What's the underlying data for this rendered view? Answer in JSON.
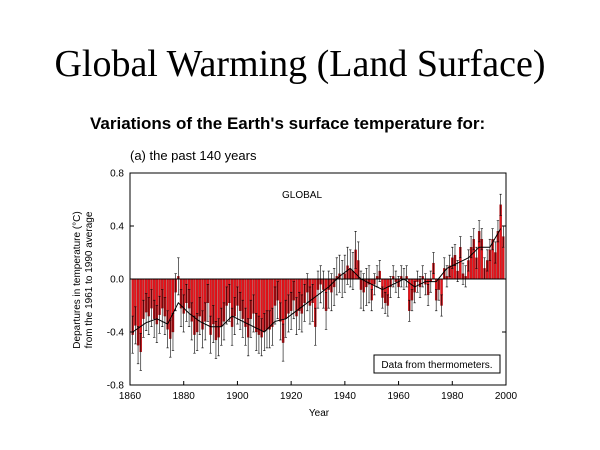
{
  "slide": {
    "title": "Global Warming (Land Surface)"
  },
  "chart_data": {
    "type": "bar",
    "title": "Variations of the Earth's surface temperature for:",
    "subtitle": "(a) the past 140 years",
    "xlabel": "Year",
    "ylabel_lines": [
      "Departures in temperature (°C)",
      "from the 1961 to 1990 average"
    ],
    "xlim": [
      1860,
      2000
    ],
    "ylim": [
      -0.8,
      0.8
    ],
    "x_ticks": [
      "1860",
      "1880",
      "1900",
      "1920",
      "1940",
      "1960",
      "1980",
      "2000"
    ],
    "y_ticks": [
      "0.8",
      "0.4",
      "0.0",
      "-0.4",
      "-0.8"
    ],
    "region_label": "GLOBAL",
    "annotation": "Data from thermometers.",
    "bar_color": "#e8121a",
    "grid": false,
    "x": [
      1861,
      1862,
      1863,
      1864,
      1865,
      1866,
      1867,
      1868,
      1869,
      1870,
      1871,
      1872,
      1873,
      1874,
      1875,
      1876,
      1877,
      1878,
      1879,
      1880,
      1881,
      1882,
      1883,
      1884,
      1885,
      1886,
      1887,
      1888,
      1889,
      1890,
      1891,
      1892,
      1893,
      1894,
      1895,
      1896,
      1897,
      1898,
      1899,
      1900,
      1901,
      1902,
      1903,
      1904,
      1905,
      1906,
      1907,
      1908,
      1909,
      1910,
      1911,
      1912,
      1913,
      1914,
      1915,
      1916,
      1917,
      1918,
      1919,
      1920,
      1921,
      1922,
      1923,
      1924,
      1925,
      1926,
      1927,
      1928,
      1929,
      1930,
      1931,
      1932,
      1933,
      1934,
      1935,
      1936,
      1937,
      1938,
      1939,
      1940,
      1941,
      1942,
      1943,
      1944,
      1945,
      1946,
      1947,
      1948,
      1949,
      1950,
      1951,
      1952,
      1953,
      1954,
      1955,
      1956,
      1957,
      1958,
      1959,
      1960,
      1961,
      1962,
      1963,
      1964,
      1965,
      1966,
      1967,
      1968,
      1969,
      1970,
      1971,
      1972,
      1973,
      1974,
      1975,
      1976,
      1977,
      1978,
      1979,
      1980,
      1981,
      1982,
      1983,
      1984,
      1985,
      1986,
      1987,
      1988,
      1989,
      1990,
      1991,
      1992,
      1993,
      1994,
      1995,
      1996,
      1997,
      1998,
      1999
    ],
    "values": [
      -0.42,
      -0.35,
      -0.5,
      -0.55,
      -0.3,
      -0.25,
      -0.28,
      -0.22,
      -0.3,
      -0.34,
      -0.27,
      -0.22,
      -0.28,
      -0.38,
      -0.45,
      -0.4,
      -0.1,
      0.02,
      -0.22,
      -0.26,
      -0.18,
      -0.22,
      -0.32,
      -0.42,
      -0.4,
      -0.28,
      -0.38,
      -0.32,
      -0.18,
      -0.42,
      -0.34,
      -0.46,
      -0.44,
      -0.36,
      -0.32,
      -0.2,
      -0.18,
      -0.36,
      -0.28,
      -0.2,
      -0.24,
      -0.3,
      -0.36,
      -0.44,
      -0.3,
      -0.26,
      -0.4,
      -0.42,
      -0.44,
      -0.4,
      -0.38,
      -0.38,
      -0.36,
      -0.2,
      -0.16,
      -0.32,
      -0.48,
      -0.3,
      -0.26,
      -0.24,
      -0.16,
      -0.28,
      -0.24,
      -0.26,
      -0.18,
      -0.1,
      -0.2,
      -0.18,
      -0.36,
      -0.08,
      -0.04,
      -0.08,
      -0.24,
      -0.08,
      -0.1,
      -0.06,
      0.02,
      0.04,
      0.0,
      0.04,
      0.1,
      0.08,
      0.06,
      0.22,
      0.14,
      -0.08,
      -0.1,
      -0.06,
      -0.04,
      -0.16,
      -0.04,
      0.02,
      0.06,
      -0.14,
      -0.18,
      -0.2,
      -0.06,
      0.02,
      -0.02,
      -0.06,
      0.02,
      0.0,
      0.02,
      -0.24,
      -0.16,
      -0.1,
      -0.02,
      -0.06,
      0.02,
      -0.04,
      -0.12,
      -0.02,
      0.12,
      -0.16,
      -0.08,
      -0.2,
      0.08,
      0.02,
      0.1,
      0.16,
      0.18,
      0.06,
      0.24,
      0.04,
      0.02,
      0.14,
      0.24,
      0.3,
      0.16,
      0.36,
      0.3,
      0.08,
      0.14,
      0.22,
      0.3,
      0.2,
      0.36,
      0.56,
      0.32
    ],
    "smoothed": [
      [
        1861,
        -0.4
      ],
      [
        1866,
        -0.33
      ],
      [
        1870,
        -0.3
      ],
      [
        1874,
        -0.34
      ],
      [
        1878,
        -0.18
      ],
      [
        1882,
        -0.26
      ],
      [
        1886,
        -0.32
      ],
      [
        1890,
        -0.36
      ],
      [
        1894,
        -0.36
      ],
      [
        1898,
        -0.28
      ],
      [
        1902,
        -0.32
      ],
      [
        1906,
        -0.36
      ],
      [
        1910,
        -0.4
      ],
      [
        1914,
        -0.32
      ],
      [
        1918,
        -0.3
      ],
      [
        1922,
        -0.24
      ],
      [
        1926,
        -0.18
      ],
      [
        1930,
        -0.12
      ],
      [
        1934,
        -0.06
      ],
      [
        1938,
        0.02
      ],
      [
        1942,
        0.08
      ],
      [
        1946,
        0.0
      ],
      [
        1950,
        -0.04
      ],
      [
        1954,
        -0.08
      ],
      [
        1958,
        -0.04
      ],
      [
        1962,
        0.0
      ],
      [
        1966,
        -0.06
      ],
      [
        1970,
        -0.02
      ],
      [
        1974,
        -0.02
      ],
      [
        1978,
        0.08
      ],
      [
        1982,
        0.12
      ],
      [
        1986,
        0.16
      ],
      [
        1990,
        0.24
      ],
      [
        1994,
        0.24
      ],
      [
        1998,
        0.38
      ]
    ]
  }
}
